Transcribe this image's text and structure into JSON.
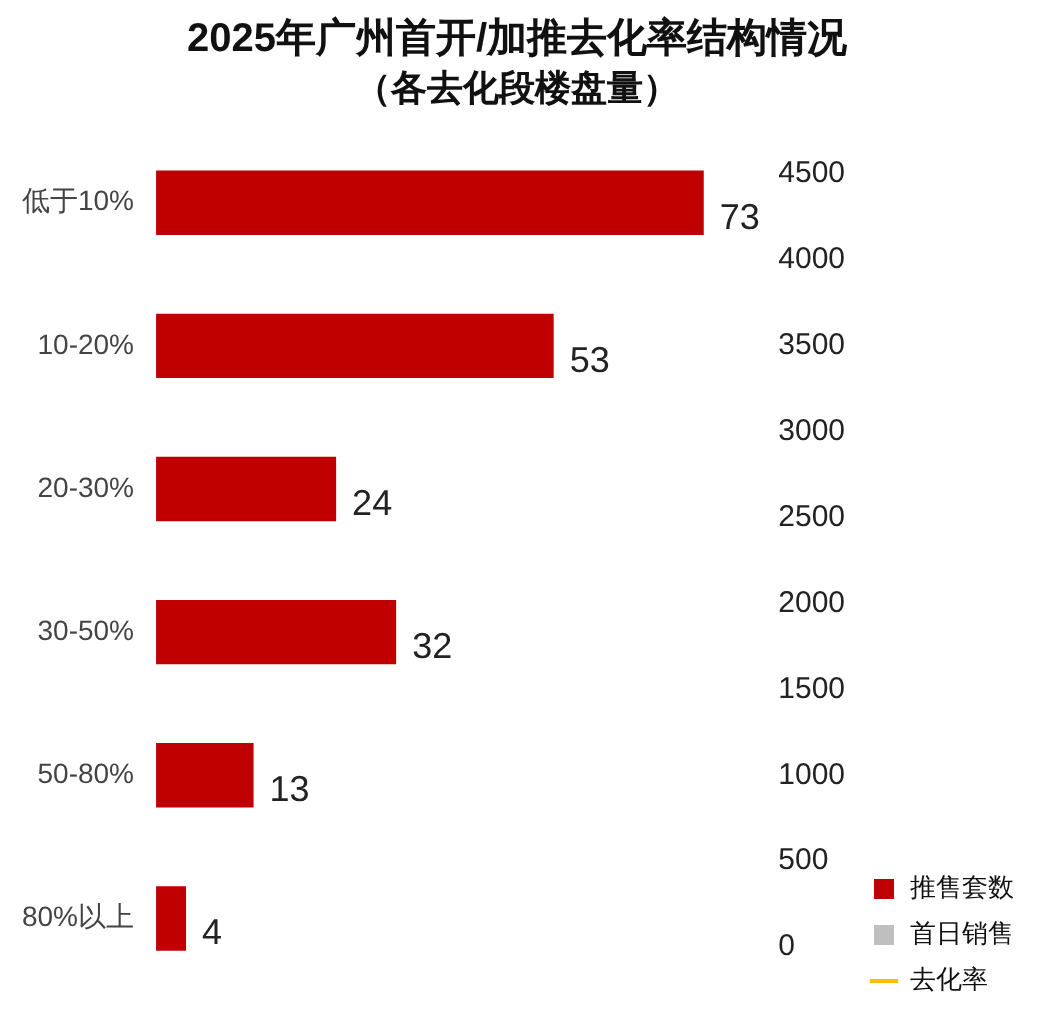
{
  "chart_data": {
    "type": "bar",
    "orientation": "horizontal",
    "title": "2025年广州首开/加推去化率结构情况",
    "subtitle": "（各去化段楼盘量）",
    "categories": [
      "低于10%",
      "10-20%",
      "20-30%",
      "30-50%",
      "50-80%",
      "80%以上"
    ],
    "series": [
      {
        "name": "推售套数",
        "color": "#c00000",
        "values": [
          73,
          53,
          24,
          32,
          13,
          4
        ]
      },
      {
        "name": "首日销售",
        "color": "#bfbfbf",
        "values": [
          null,
          null,
          null,
          null,
          null,
          null
        ]
      },
      {
        "name": "去化率",
        "type": "line",
        "color": "#ffc000",
        "values": [
          null,
          null,
          null,
          null,
          null,
          null
        ]
      }
    ],
    "y2lim": [
      0,
      4500
    ],
    "y2ticks": [
      0,
      500,
      1000,
      1500,
      2000,
      2500,
      3000,
      3500,
      4000,
      4500
    ],
    "data_labels": true,
    "legend": "bottom right"
  }
}
